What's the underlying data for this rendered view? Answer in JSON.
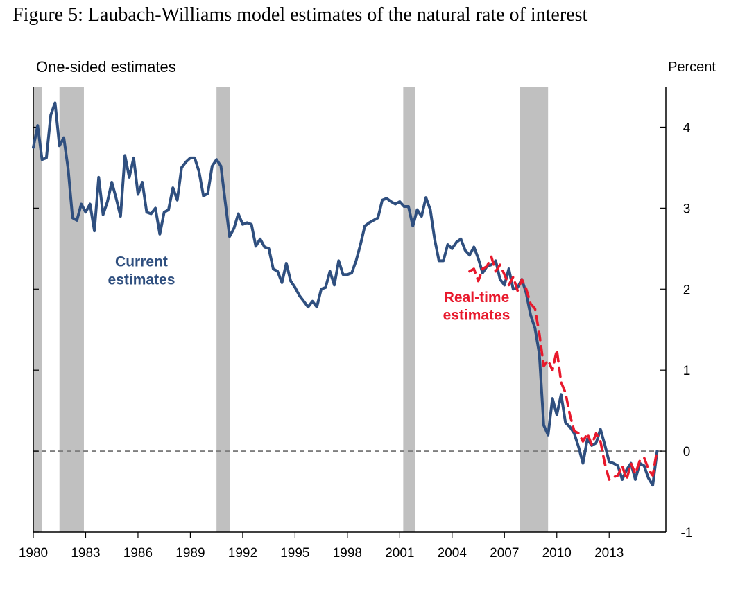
{
  "figure_title": "Figure 5: Laubach-Williams model estimates of the natural rate of interest",
  "chart_data": {
    "type": "line",
    "title": "Figure 5: Laubach-Williams model estimates of the natural rate of interest",
    "subtitle": "One-sided estimates",
    "ylabel": "Percent",
    "xlabel": "",
    "xlim": [
      1980,
      2016.25
    ],
    "ylim": [
      -1,
      4.5
    ],
    "x_ticks": [
      1980,
      1983,
      1986,
      1989,
      1992,
      1995,
      1998,
      2001,
      2004,
      2007,
      2010,
      2013
    ],
    "x_tick_labels": [
      "1980",
      "1983",
      "1986",
      "1989",
      "1992",
      "1995",
      "1998",
      "2001",
      "2004",
      "2007",
      "2010",
      "2013"
    ],
    "y_ticks": [
      -1,
      0,
      1,
      2,
      3,
      4
    ],
    "y_tick_labels": [
      "-1",
      "0",
      "1",
      "2",
      "3",
      "4"
    ],
    "reference_line": {
      "y": 0,
      "style": "dashed",
      "color": "#7f7f7f"
    },
    "recessions": [
      {
        "start": 1980.0,
        "end": 1980.5
      },
      {
        "start": 1981.5,
        "end": 1982.9
      },
      {
        "start": 1990.5,
        "end": 1991.25
      },
      {
        "start": 2001.2,
        "end": 2001.9
      },
      {
        "start": 2007.9,
        "end": 2009.5
      }
    ],
    "colors": {
      "current": "#2f4f7f",
      "realtime": "#e8192c",
      "recession": "#c0c0c0",
      "axis": "#000000"
    },
    "annotations": [
      {
        "text": "Current",
        "series": "current",
        "x": 1986.2,
        "y": 2.28
      },
      {
        "text": "estimates",
        "series": "current",
        "x": 1986.2,
        "y": 2.06
      },
      {
        "text": "Real-time",
        "series": "realtime",
        "x": 2005.4,
        "y": 1.84
      },
      {
        "text": "estimates",
        "series": "realtime",
        "x": 2005.4,
        "y": 1.62
      }
    ],
    "series": [
      {
        "name": "Current estimates",
        "style": "solid",
        "color": "#2f4f7f",
        "x": [
          1980.0,
          1980.25,
          1980.5,
          1980.75,
          1981.0,
          1981.25,
          1981.5,
          1981.75,
          1982.0,
          1982.25,
          1982.5,
          1982.75,
          1983.0,
          1983.25,
          1983.5,
          1983.75,
          1984.0,
          1984.25,
          1984.5,
          1984.75,
          1985.0,
          1985.25,
          1985.5,
          1985.75,
          1986.0,
          1986.25,
          1986.5,
          1986.75,
          1987.0,
          1987.25,
          1987.5,
          1987.75,
          1988.0,
          1988.25,
          1988.5,
          1988.75,
          1989.0,
          1989.25,
          1989.5,
          1989.75,
          1990.0,
          1990.25,
          1990.5,
          1990.75,
          1991.0,
          1991.25,
          1991.5,
          1991.75,
          1992.0,
          1992.25,
          1992.5,
          1992.75,
          1993.0,
          1993.25,
          1993.5,
          1993.75,
          1994.0,
          1994.25,
          1994.5,
          1994.75,
          1995.0,
          1995.25,
          1995.5,
          1995.75,
          1996.0,
          1996.25,
          1996.5,
          1996.75,
          1997.0,
          1997.25,
          1997.5,
          1997.75,
          1998.0,
          1998.25,
          1998.5,
          1998.75,
          1999.0,
          1999.25,
          1999.5,
          1999.75,
          2000.0,
          2000.25,
          2000.5,
          2000.75,
          2001.0,
          2001.25,
          2001.5,
          2001.75,
          2002.0,
          2002.25,
          2002.5,
          2002.75,
          2003.0,
          2003.25,
          2003.5,
          2003.75,
          2004.0,
          2004.25,
          2004.5,
          2004.75,
          2005.0,
          2005.25,
          2005.5,
          2005.75,
          2006.0,
          2006.25,
          2006.5,
          2006.75,
          2007.0,
          2007.25,
          2007.5,
          2007.75,
          2008.0,
          2008.25,
          2008.5,
          2008.75,
          2009.0,
          2009.25,
          2009.5,
          2009.75,
          2010.0,
          2010.25,
          2010.5,
          2010.75,
          2011.0,
          2011.25,
          2011.5,
          2011.75,
          2012.0,
          2012.25,
          2012.5,
          2012.75,
          2013.0,
          2013.25,
          2013.5,
          2013.75,
          2014.0,
          2014.25,
          2014.5,
          2014.75,
          2015.0,
          2015.25,
          2015.5,
          2015.75
        ],
        "values": [
          3.75,
          4.02,
          3.6,
          3.62,
          4.15,
          4.3,
          3.77,
          3.87,
          3.48,
          2.88,
          2.85,
          3.05,
          2.95,
          3.05,
          2.72,
          3.38,
          2.92,
          3.08,
          3.32,
          3.12,
          2.9,
          3.65,
          3.38,
          3.62,
          3.17,
          3.32,
          2.95,
          2.93,
          3.0,
          2.68,
          2.95,
          2.98,
          3.25,
          3.1,
          3.5,
          3.57,
          3.62,
          3.62,
          3.45,
          3.15,
          3.18,
          3.52,
          3.6,
          3.52,
          3.08,
          2.65,
          2.75,
          2.93,
          2.8,
          2.82,
          2.8,
          2.53,
          2.62,
          2.52,
          2.5,
          2.25,
          2.22,
          2.08,
          2.32,
          2.1,
          2.02,
          1.92,
          1.85,
          1.78,
          1.85,
          1.78,
          2.0,
          2.02,
          2.22,
          2.05,
          2.35,
          2.18,
          2.18,
          2.2,
          2.35,
          2.55,
          2.78,
          2.82,
          2.85,
          2.88,
          3.1,
          3.12,
          3.08,
          3.05,
          3.08,
          3.02,
          3.02,
          2.78,
          2.98,
          2.9,
          3.13,
          2.98,
          2.62,
          2.35,
          2.35,
          2.55,
          2.5,
          2.58,
          2.62,
          2.48,
          2.42,
          2.52,
          2.38,
          2.2,
          2.28,
          2.3,
          2.35,
          2.12,
          2.05,
          2.25,
          2.0,
          2.02,
          2.12,
          1.95,
          1.68,
          1.52,
          1.2,
          0.32,
          0.2,
          0.65,
          0.45,
          0.7,
          0.35,
          0.3,
          0.22,
          0.05,
          -0.15,
          0.15,
          0.07,
          0.1,
          0.27,
          0.08,
          -0.13,
          -0.15,
          -0.18,
          -0.35,
          -0.23,
          -0.15,
          -0.35,
          -0.15,
          -0.18,
          -0.33,
          -0.42,
          0.0
        ]
      },
      {
        "name": "Real-time estimates",
        "style": "dashed",
        "color": "#e8192c",
        "x": [
          2005.0,
          2005.25,
          2005.5,
          2005.75,
          2006.0,
          2006.25,
          2006.5,
          2006.75,
          2007.0,
          2007.25,
          2007.5,
          2007.75,
          2008.0,
          2008.25,
          2008.5,
          2008.75,
          2009.0,
          2009.25,
          2009.5,
          2009.75,
          2010.0,
          2010.25,
          2010.5,
          2010.75,
          2011.0,
          2011.25,
          2011.5,
          2011.75,
          2012.0,
          2012.25,
          2012.5,
          2012.75,
          2013.0,
          2013.25,
          2013.5,
          2013.75,
          2014.0,
          2014.25,
          2014.5,
          2014.75,
          2015.0,
          2015.25,
          2015.5,
          2015.75
        ],
        "values": [
          2.22,
          2.25,
          2.1,
          2.25,
          2.28,
          2.4,
          2.22,
          2.3,
          2.18,
          2.05,
          2.15,
          1.98,
          2.12,
          2.0,
          1.82,
          1.76,
          1.45,
          1.05,
          1.12,
          1.0,
          1.25,
          0.85,
          0.72,
          0.45,
          0.25,
          0.22,
          0.12,
          0.22,
          0.08,
          0.22,
          0.12,
          -0.15,
          -0.35,
          -0.32,
          -0.3,
          -0.18,
          -0.35,
          -0.15,
          -0.28,
          -0.12,
          -0.08,
          -0.22,
          -0.3,
          0.02
        ]
      }
    ]
  }
}
